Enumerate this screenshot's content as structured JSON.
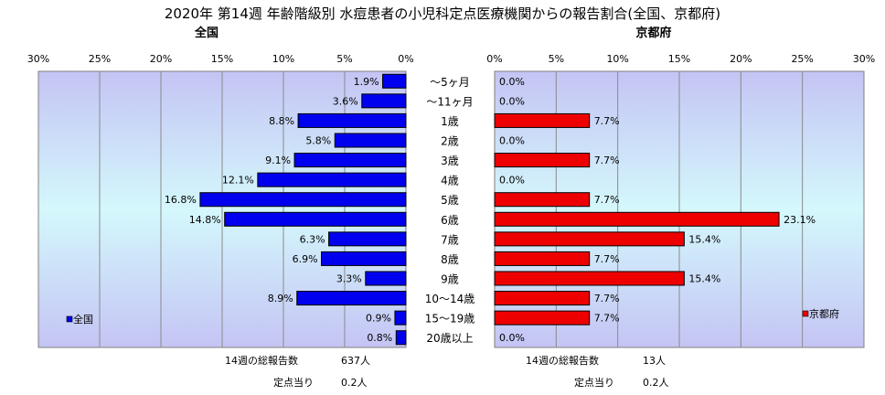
{
  "title": "2020年 第14週 年齢階級別 水痘患者の小児科定点医療機関からの報告割合(全国、京都府)",
  "age_groups": [
    "～5ヶ月",
    "～11ヶ月",
    "1歳",
    "2歳",
    "3歳",
    "4歳",
    "5歳",
    "6歳",
    "7歳",
    "8歳",
    "9歳",
    "10～14歳",
    "15～19歳",
    "20歳以上"
  ],
  "colors": {
    "national_bar": "#0000ee",
    "kyoto_bar": "#ee0000",
    "bar_stroke": "#000000"
  },
  "chart_data": [
    {
      "type": "bar",
      "orientation": "horizontal",
      "direction": "right-to-left",
      "title": "全国",
      "series": [
        {
          "name": "全国",
          "values": [
            1.9,
            3.6,
            8.8,
            5.8,
            9.1,
            12.1,
            16.8,
            14.8,
            6.3,
            6.9,
            3.3,
            8.9,
            0.9,
            0.8
          ]
        }
      ],
      "value_labels": [
        "1.9%",
        "3.6%",
        "8.8%",
        "5.8%",
        "9.1%",
        "12.1%",
        "16.8%",
        "14.8%",
        "6.3%",
        "6.9%",
        "3.3%",
        "8.9%",
        "0.9%",
        "0.8%"
      ],
      "xlim": [
        0,
        30
      ],
      "ticks": [
        0,
        5,
        10,
        15,
        20,
        25,
        30
      ],
      "tick_labels": [
        "0%",
        "5%",
        "10%",
        "15%",
        "20%",
        "25%",
        "30%"
      ],
      "grid": true,
      "legend": "bottom-left",
      "legend_label": "全国"
    },
    {
      "type": "bar",
      "orientation": "horizontal",
      "direction": "left-to-right",
      "title": "京都府",
      "series": [
        {
          "name": "京都府",
          "values": [
            0.0,
            0.0,
            7.7,
            0.0,
            7.7,
            0.0,
            7.7,
            23.1,
            15.4,
            7.7,
            15.4,
            7.7,
            7.7,
            0.0
          ]
        }
      ],
      "value_labels": [
        "0.0%",
        "0.0%",
        "7.7%",
        "0.0%",
        "7.7%",
        "0.0%",
        "7.7%",
        "23.1%",
        "15.4%",
        "7.7%",
        "15.4%",
        "7.7%",
        "7.7%",
        "0.0%"
      ],
      "xlim": [
        0,
        30
      ],
      "ticks": [
        0,
        5,
        10,
        15,
        20,
        25,
        30
      ],
      "tick_labels": [
        "0%",
        "5%",
        "10%",
        "15%",
        "20%",
        "25%",
        "30%"
      ],
      "grid": true,
      "legend": "bottom-right",
      "legend_label": "京都府"
    }
  ],
  "footer": {
    "national": {
      "total_label": "14週の総報告数",
      "total_value": "637人",
      "per_label": "定点当り",
      "per_value": "0.2人"
    },
    "kyoto": {
      "total_label": "14週の総報告数",
      "total_value": "13人",
      "per_label": "定点当り",
      "per_value": "0.2人"
    }
  }
}
